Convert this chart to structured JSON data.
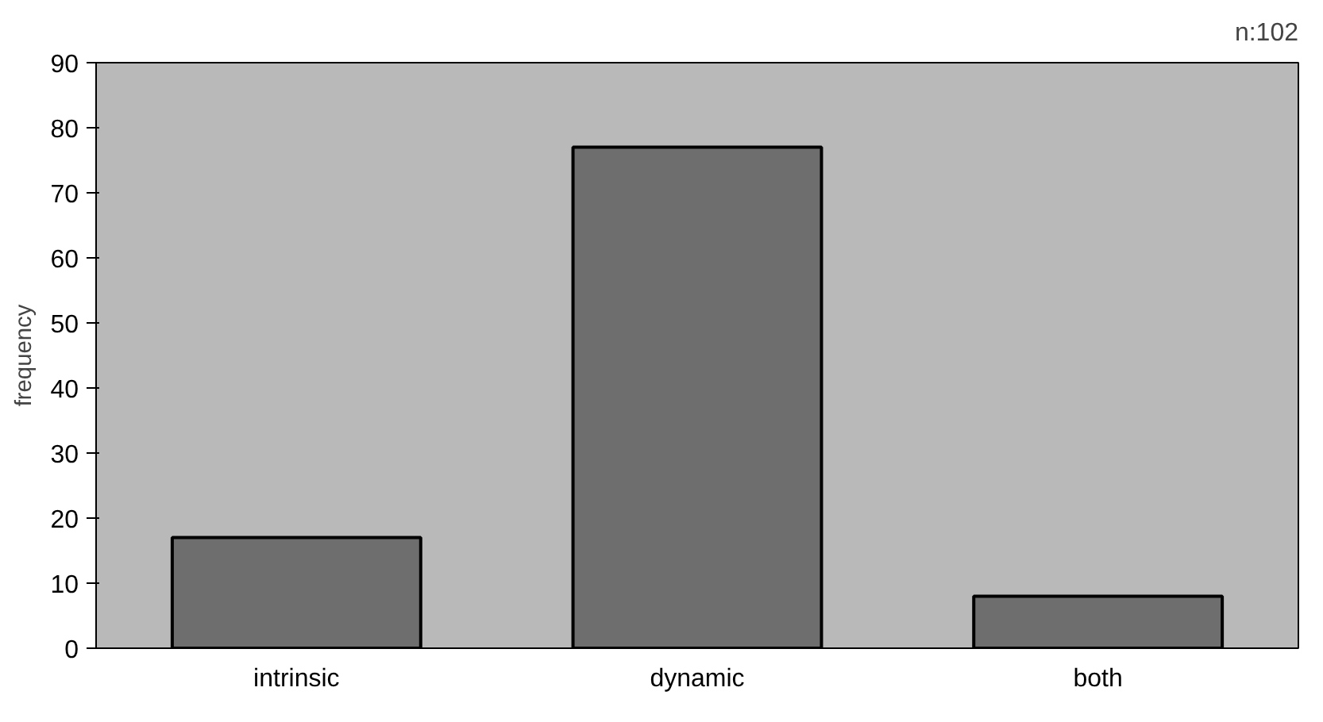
{
  "chart_data": {
    "type": "bar",
    "ylabel": "frequency",
    "annotations": [
      "n:102"
    ],
    "categories": [
      "intrinsic",
      "dynamic",
      "both"
    ],
    "values": [
      17,
      77,
      8
    ],
    "color": "#6e6e6e",
    "ylim": [
      0,
      90
    ],
    "yticks": [
      0,
      10,
      20,
      30,
      40,
      50,
      60,
      70,
      80,
      90
    ],
    "grid": false
  }
}
